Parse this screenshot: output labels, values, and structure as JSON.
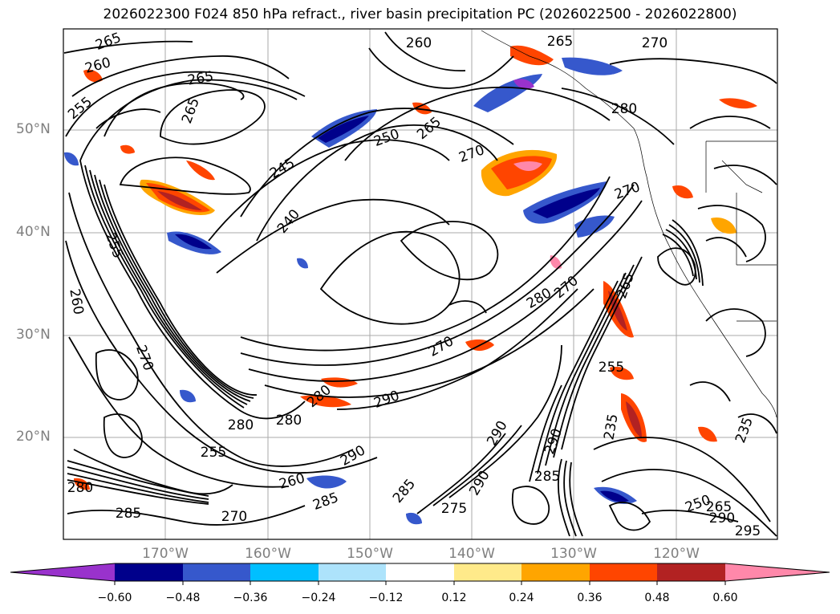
{
  "title": "2026022300 F024 850 hPa refract., river basin precipitation PC (2026022500 - 2026022800)",
  "latitude_labels": [
    "50°N",
    "40°N",
    "30°N",
    "20°N"
  ],
  "longitude_labels": [
    "170°W",
    "160°W",
    "150°W",
    "140°W",
    "130°W",
    "120°W"
  ],
  "colorbar": {
    "ticks": [
      "−0.60",
      "−0.48",
      "−0.36",
      "−0.24",
      "−0.12",
      "0.12",
      "0.24",
      "0.36",
      "0.48",
      "0.60"
    ],
    "colors": [
      "#9932cc",
      "#00008b",
      "#3658cc",
      "#00bfff",
      "#ade3fb",
      "#ffffff",
      "#ffea8a",
      "#ffa500",
      "#ff4500",
      "#b22222",
      "#ff88aa"
    ]
  },
  "contour_labels": [
    "265",
    "260",
    "265",
    "260",
    "265",
    "270",
    "255",
    "240",
    "245",
    "250",
    "265",
    "270",
    "255",
    "260",
    "280",
    "285",
    "265",
    "270",
    "280",
    "270",
    "290",
    "285",
    "270",
    "255",
    "260",
    "290",
    "285",
    "290",
    "290",
    "285",
    "270",
    "280",
    "265",
    "255",
    "235",
    "290",
    "280",
    "235",
    "250",
    "265",
    "295",
    "290",
    "280",
    "270",
    "275",
    "280"
  ]
}
